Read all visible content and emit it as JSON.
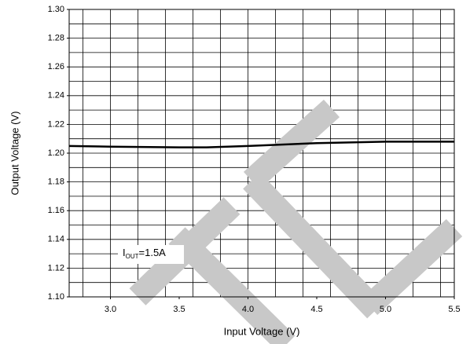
{
  "chart_data": {
    "type": "line",
    "xlabel": "Input Voltage (V)",
    "ylabel": "Output Voltage (V)",
    "annotation": {
      "main": "I",
      "subscript": "OUT",
      "rest": "=1.5A"
    },
    "x": [
      2.7,
      3.0,
      3.5,
      3.7,
      4.0,
      4.5,
      5.0,
      5.5
    ],
    "series": [
      {
        "color": "#000000",
        "values": [
          1.205,
          1.2045,
          1.204,
          1.204,
          1.205,
          1.207,
          1.208,
          1.208
        ]
      }
    ],
    "xlim": [
      2.7,
      5.5
    ],
    "ylim": [
      1.1,
      1.3
    ],
    "xticks": [
      {
        "value": 3.0,
        "label": "3.0"
      },
      {
        "value": 3.5,
        "label": "3.5"
      },
      {
        "value": 4.0,
        "label": "4.0"
      },
      {
        "value": 4.5,
        "label": "4.5"
      },
      {
        "value": 5.0,
        "label": "5.0"
      },
      {
        "value": 5.5,
        "label": "5.5"
      }
    ],
    "yticks": [
      {
        "value": 1.1,
        "label": "1.10"
      },
      {
        "value": 1.12,
        "label": "1.12"
      },
      {
        "value": 1.14,
        "label": "1.14"
      },
      {
        "value": 1.16,
        "label": "1.16"
      },
      {
        "value": 1.18,
        "label": "1.18"
      },
      {
        "value": 1.2,
        "label": "1.20"
      },
      {
        "value": 1.22,
        "label": "1.22"
      },
      {
        "value": 1.24,
        "label": "1.24"
      },
      {
        "value": 1.26,
        "label": "1.26"
      },
      {
        "value": 1.28,
        "label": "1.28"
      },
      {
        "value": 1.3,
        "label": "1.30"
      }
    ],
    "x_gridlines": [
      2.8,
      3.0,
      3.2,
      3.4,
      3.6,
      3.8,
      4.0,
      4.2,
      4.4,
      4.6,
      4.8,
      5.0,
      5.2,
      5.4
    ],
    "y_gridlines": [
      1.11,
      1.12,
      1.13,
      1.14,
      1.15,
      1.16,
      1.17,
      1.18,
      1.19,
      1.2,
      1.21,
      1.22,
      1.23,
      1.24,
      1.25,
      1.26,
      1.27,
      1.28,
      1.29
    ],
    "grid": true
  }
}
